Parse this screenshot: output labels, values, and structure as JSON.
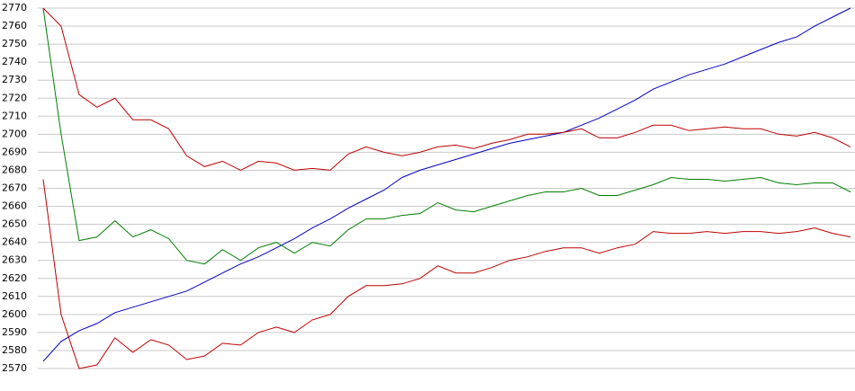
{
  "chart_data": {
    "type": "line",
    "ylim": [
      2570,
      2770
    ],
    "yticks": [
      2570,
      2580,
      2590,
      2600,
      2610,
      2620,
      2630,
      2640,
      2650,
      2660,
      2670,
      2680,
      2690,
      2700,
      2710,
      2720,
      2730,
      2740,
      2750,
      2760,
      2770
    ],
    "grid": true,
    "series": [
      {
        "color": "#0000c0",
        "values": [
          2574,
          2585,
          2591,
          2595,
          2601,
          2604,
          2607,
          2610,
          2613,
          2618,
          2623,
          2628,
          2632,
          2637,
          2642,
          2648,
          2653,
          2659,
          2664,
          2669,
          2676,
          2680,
          2683,
          2686,
          2689,
          2692,
          2695,
          2697,
          2699,
          2701,
          2705,
          2709,
          2714,
          2719,
          2725,
          2729,
          2733,
          2736,
          2739,
          2743,
          2747,
          2751,
          2754,
          2760,
          2765,
          2770
        ]
      },
      {
        "color": "#008000",
        "values": [
          2770,
          2700,
          2641,
          2643,
          2652,
          2643,
          2647,
          2642,
          2630,
          2628,
          2636,
          2630,
          2637,
          2640,
          2634,
          2640,
          2638,
          2647,
          2653,
          2653,
          2655,
          2656,
          2662,
          2658,
          2657,
          2660,
          2663,
          2666,
          2668,
          2668,
          2670,
          2666,
          2666,
          2669,
          2672,
          2676,
          2675,
          2675,
          2674,
          2675,
          2676,
          2673,
          2672,
          2673,
          2673,
          2668
        ]
      },
      {
        "color": "#c00000",
        "values": [
          2770,
          2760,
          2722,
          2715,
          2720,
          2708,
          2708,
          2703,
          2688,
          2682,
          2685,
          2680,
          2685,
          2684,
          2680,
          2681,
          2680,
          2689,
          2693,
          2690,
          2688,
          2690,
          2693,
          2694,
          2692,
          2695,
          2697,
          2700,
          2700,
          2701,
          2703,
          2698,
          2698,
          2701,
          2705,
          2705,
          2702,
          2703,
          2704,
          2703,
          2703,
          2700,
          2699,
          2701,
          2698,
          2693
        ]
      },
      {
        "color": "#c00000",
        "values": [
          2675,
          2600,
          2570,
          2572,
          2587,
          2579,
          2586,
          2583,
          2575,
          2577,
          2584,
          2583,
          2590,
          2593,
          2590,
          2597,
          2600,
          2610,
          2616,
          2616,
          2617,
          2620,
          2627,
          2623,
          2623,
          2626,
          2630,
          2632,
          2635,
          2637,
          2637,
          2634,
          2637,
          2639,
          2646,
          2645,
          2645,
          2646,
          2645,
          2646,
          2646,
          2645,
          2646,
          2648,
          2645,
          2643
        ]
      }
    ]
  }
}
